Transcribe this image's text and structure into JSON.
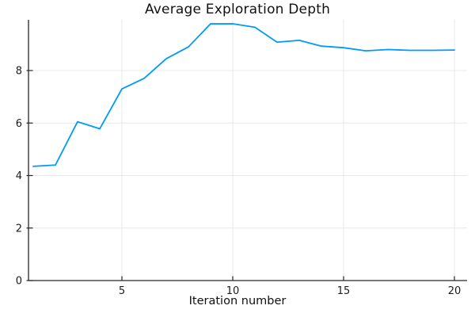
{
  "chart_data": {
    "type": "line",
    "title": "Average Exploration Depth",
    "xlabel": "Iteration number",
    "ylabel": "",
    "x": [
      1,
      2,
      3,
      4,
      5,
      6,
      7,
      8,
      9,
      10,
      11,
      12,
      13,
      14,
      15,
      16,
      17,
      18,
      19,
      20
    ],
    "series": [
      {
        "name": "average-exploration-depth",
        "values": [
          4.35,
          4.4,
          6.05,
          5.78,
          7.3,
          7.7,
          8.45,
          8.9,
          9.78,
          9.78,
          9.65,
          9.08,
          9.15,
          8.93,
          8.87,
          8.75,
          8.8,
          8.77,
          8.77,
          8.78
        ]
      }
    ],
    "xticks": [
      5,
      10,
      15,
      20
    ],
    "yticks": [
      0,
      2,
      4,
      6,
      8
    ],
    "xlim": [
      0.8,
      20.6
    ],
    "ylim": [
      0,
      9.93
    ],
    "grid": true,
    "legend": "none",
    "colors": {
      "line": "#009af9",
      "grid": "#e8e8e8",
      "axis": "#26262a",
      "text": "#1c1c1c",
      "background": "#ffffff"
    }
  }
}
